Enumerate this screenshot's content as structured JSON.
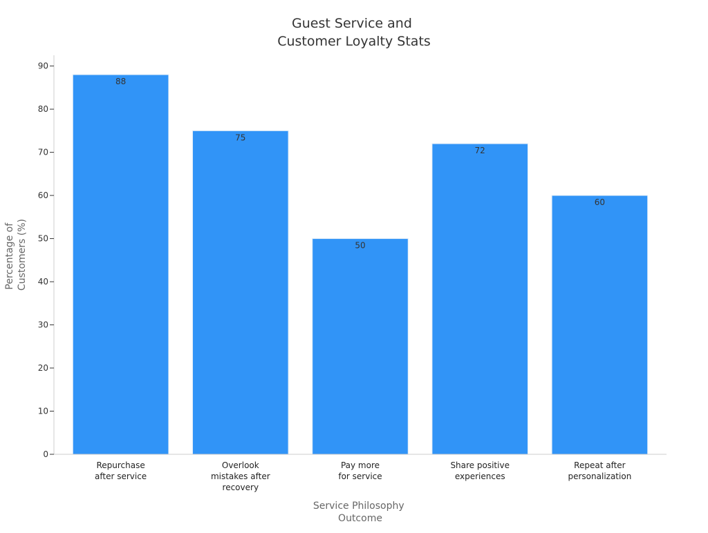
{
  "chart_data": {
    "type": "bar",
    "title_lines": [
      "Guest Service and",
      "Customer Loyalty Stats"
    ],
    "xlabel_lines": [
      "Service Philosophy",
      "Outcome"
    ],
    "ylabel_lines": [
      "Percentage of",
      "Customers (%)"
    ],
    "categories": [
      [
        "Repurchase",
        "after service"
      ],
      [
        "Overlook",
        "mistakes after",
        "recovery"
      ],
      [
        "Pay more",
        "for service"
      ],
      [
        "Share positive",
        "experiences"
      ],
      [
        "Repeat after",
        "personalization"
      ]
    ],
    "values": [
      88,
      75,
      50,
      72,
      60
    ],
    "data_labels": [
      "88",
      "75",
      "50",
      "72",
      "60"
    ],
    "yticks": [
      0,
      10,
      20,
      30,
      40,
      50,
      60,
      70,
      80,
      90
    ],
    "ylim": [
      0,
      92.5
    ],
    "grid": false,
    "legend": "none",
    "bar_color": "#3194f7",
    "bar_edge_color": "#e3edf7",
    "text_color": "#333333",
    "axis_label_color": "#666666",
    "axis_color": "#cccccc"
  }
}
